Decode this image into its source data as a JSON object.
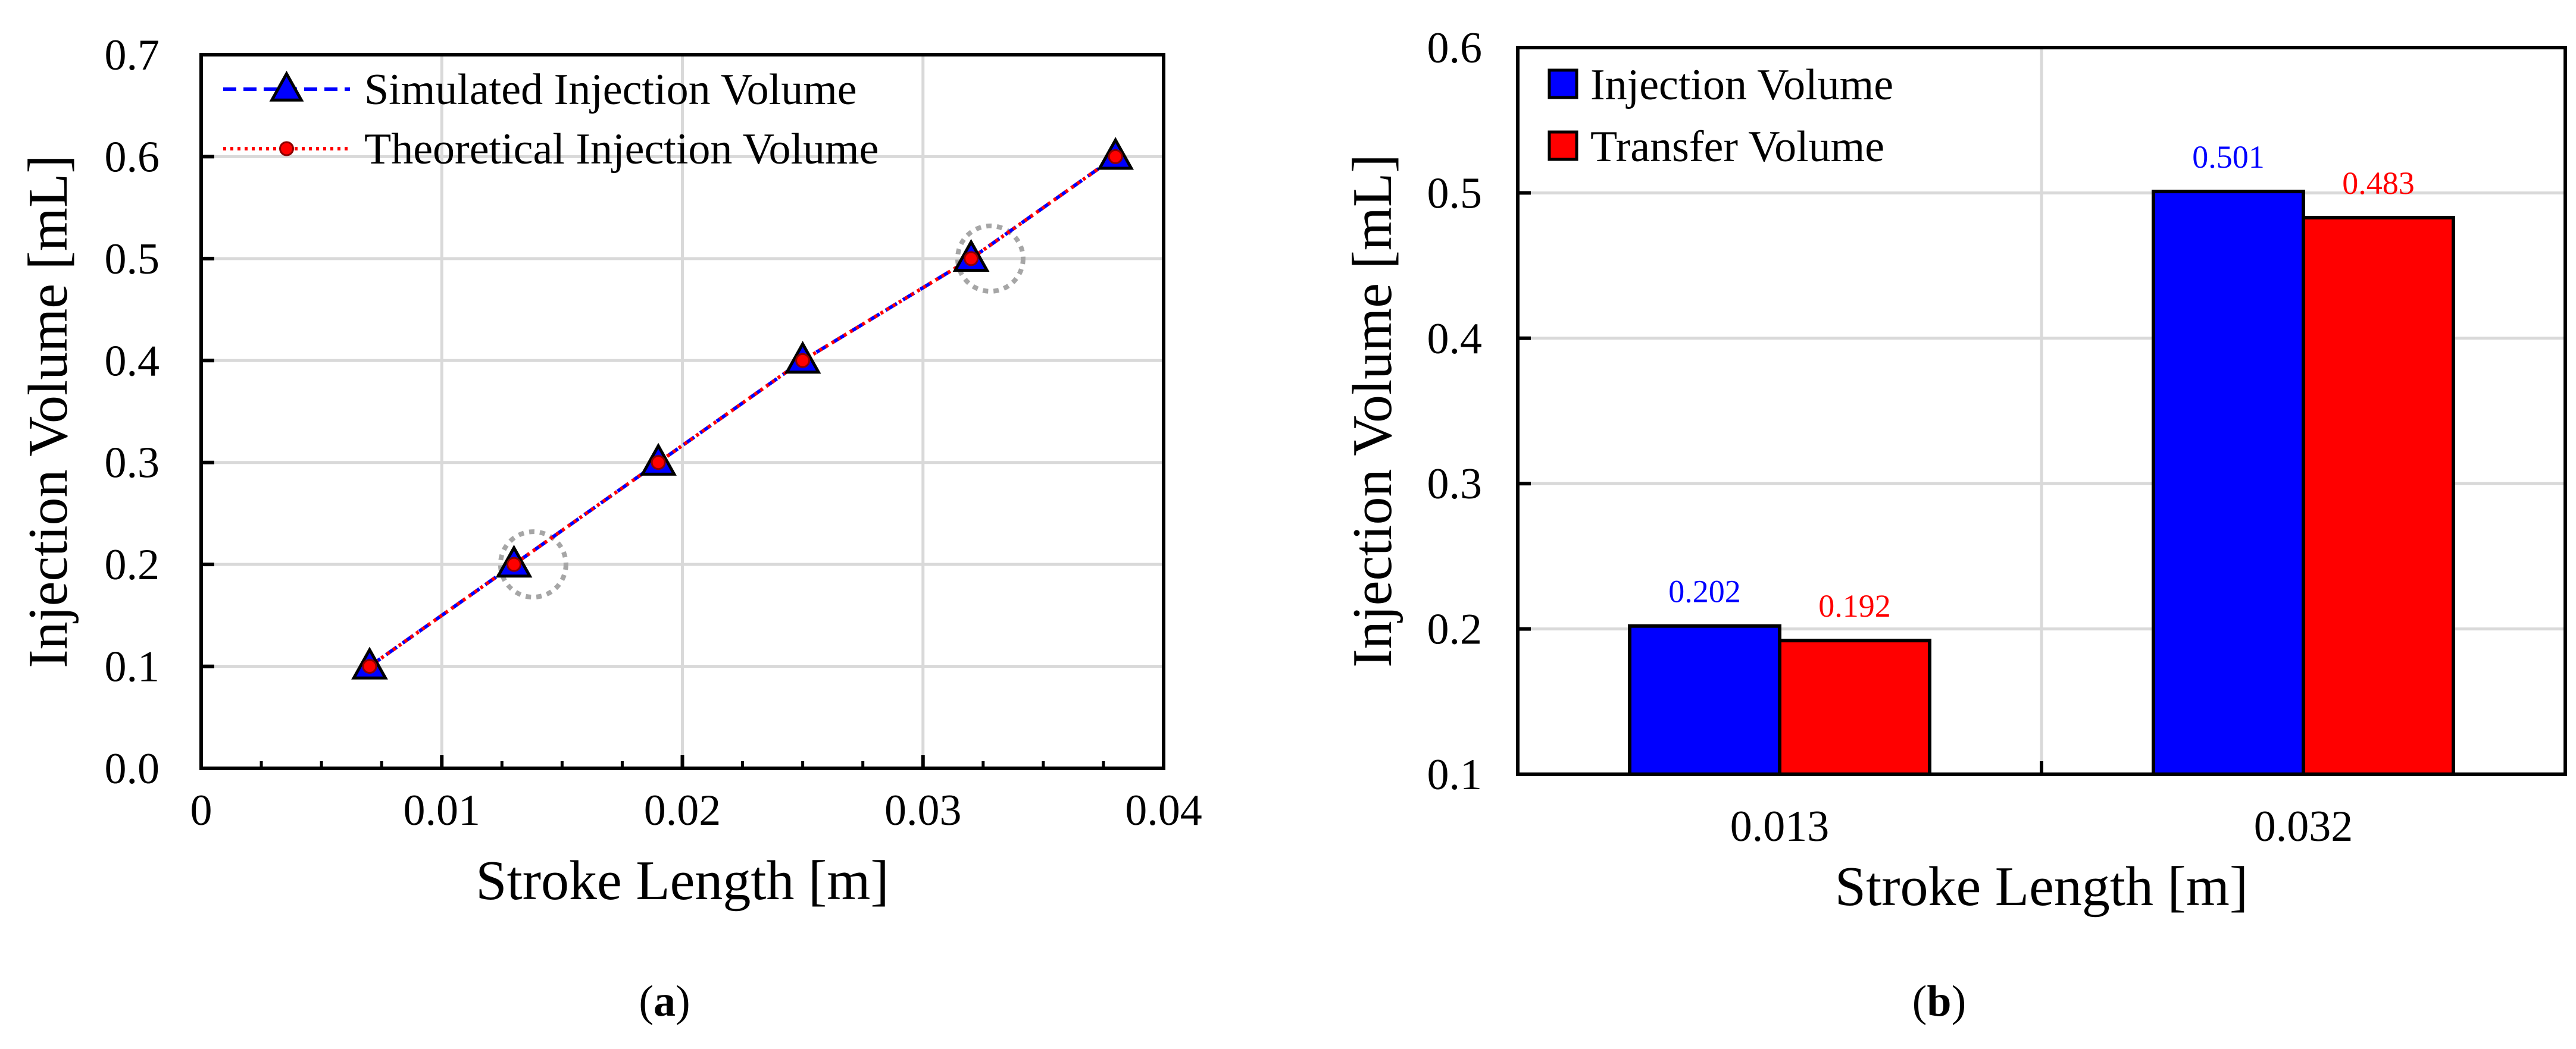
{
  "colors": {
    "blue": "#0000ff",
    "red": "#ff0000",
    "grid": "#d9d9d9",
    "axis": "#000000",
    "annotation": "#a6a6a6"
  },
  "chart_data": [
    {
      "type": "line",
      "panel_label": "(a)",
      "xlabel": "Stroke Length [m]",
      "ylabel": "Injection Volume [mL]",
      "xlim": [
        0,
        0.04
      ],
      "ylim": [
        0,
        0.7
      ],
      "x_ticks": [
        "0",
        "0.01",
        "0.02",
        "0.03",
        "0.04"
      ],
      "y_ticks": [
        "0.0",
        "0.1",
        "0.2",
        "0.3",
        "0.4",
        "0.5",
        "0.6",
        "0.7"
      ],
      "grid": true,
      "legend_position": "top-left",
      "series": [
        {
          "name": "Simulated Injection Volume",
          "color": "#0000ff",
          "line": "dashed",
          "marker": "triangle",
          "x": [
            0.007,
            0.013,
            0.019,
            0.025,
            0.032,
            0.038
          ],
          "y": [
            0.1,
            0.2,
            0.3,
            0.4,
            0.5,
            0.6
          ]
        },
        {
          "name": "Theoretical Injection Volume",
          "color": "#ff0000",
          "line": "dotted",
          "marker": "circle",
          "x": [
            0.007,
            0.013,
            0.019,
            0.025,
            0.032,
            0.038
          ],
          "y": [
            0.1,
            0.2,
            0.3,
            0.4,
            0.5,
            0.6
          ]
        }
      ],
      "annotations": [
        {
          "shape": "dotted-circle",
          "x": 0.0138,
          "y": 0.2
        },
        {
          "shape": "dotted-circle",
          "x": 0.0328,
          "y": 0.5
        }
      ]
    },
    {
      "type": "bar",
      "panel_label": "(b)",
      "xlabel": "Stroke Length [m]",
      "ylabel": "Injection Volume [mL]",
      "categories": [
        "0.013",
        "0.032"
      ],
      "ylim": [
        0.1,
        0.6
      ],
      "y_ticks": [
        "0.1",
        "0.2",
        "0.3",
        "0.4",
        "0.5",
        "0.6"
      ],
      "grid": true,
      "legend_position": "top-left",
      "series": [
        {
          "name": "Injection Volume",
          "color": "#0000ff",
          "values": [
            0.202,
            0.501
          ],
          "labels": [
            "0.202",
            "0.501"
          ]
        },
        {
          "name": "Transfer Volume",
          "color": "#ff0000",
          "values": [
            0.192,
            0.483
          ],
          "labels": [
            "0.192",
            "0.483"
          ]
        }
      ]
    }
  ]
}
